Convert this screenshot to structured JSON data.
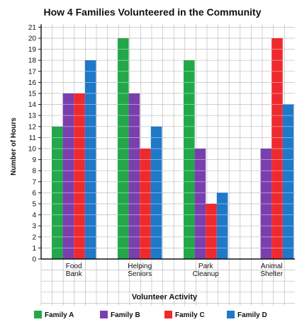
{
  "chart_data": {
    "type": "bar",
    "title": "How 4 Families Volunteered in the Community",
    "xlabel": "Volunteer Activity",
    "ylabel": "Number of Hours",
    "categories": [
      [
        "Food",
        "Bank"
      ],
      [
        "Helping",
        "Seniors"
      ],
      [
        "Park",
        "Cleanup"
      ],
      [
        "Animal",
        "Shelter"
      ]
    ],
    "series": [
      {
        "name": "Family A",
        "color": "#22a84a",
        "values": [
          12,
          20,
          18,
          0
        ]
      },
      {
        "name": "Family B",
        "color": "#7a3fae",
        "values": [
          15,
          15,
          10,
          10
        ]
      },
      {
        "name": "Family C",
        "color": "#ee2a2e",
        "values": [
          15,
          10,
          5,
          20
        ]
      },
      {
        "name": "Family D",
        "color": "#1f78c8",
        "values": [
          18,
          12,
          6,
          14
        ]
      }
    ],
    "ylim": [
      0,
      21
    ],
    "yticks": [
      0,
      1,
      2,
      3,
      4,
      5,
      6,
      7,
      8,
      9,
      10,
      11,
      12,
      13,
      14,
      15,
      16,
      17,
      18,
      19,
      20,
      21
    ],
    "grid": true,
    "legend_position": "bottom",
    "colors": {
      "grid": "#bdbdbd",
      "text": "#111111"
    }
  }
}
